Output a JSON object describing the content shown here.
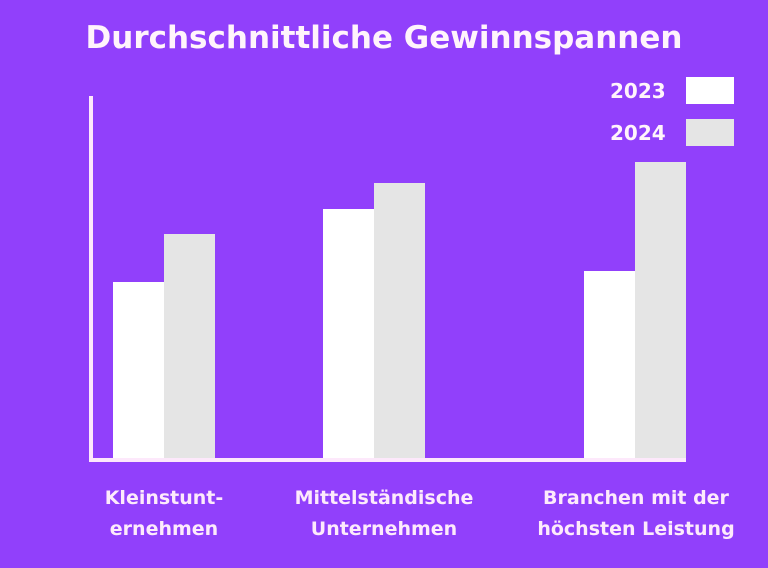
{
  "title": "Durchschnittliche Gewinnspannen",
  "legend": [
    {
      "label": "2023",
      "color": "#ffffff"
    },
    {
      "label": "2024",
      "color": "#e5e5e5"
    }
  ],
  "colors": {
    "background": "#9140fb",
    "axis": "#fde8fb",
    "text": "#fff4fb"
  },
  "categories": [
    {
      "line1": "Kleinstunt-",
      "line2": "ernehmen"
    },
    {
      "line1": "Mittelständische",
      "line2": "Unternehmen"
    },
    {
      "line1": "Branchen mit der",
      "line2": "höchsten Leistung"
    }
  ],
  "chart_data": {
    "type": "bar",
    "title": "Durchschnittliche Gewinnspannen",
    "categories": [
      "Kleinstunternehmen",
      "Mittelständische Unternehmen",
      "Branchen mit der höchsten Leistung"
    ],
    "series": [
      {
        "name": "2023",
        "color": "#ffffff",
        "values": [
          49,
          69,
          52
        ]
      },
      {
        "name": "2024",
        "color": "#e5e5e5",
        "values": [
          62,
          76,
          82
        ]
      }
    ],
    "xlabel": "",
    "ylabel": "",
    "ylim": [
      0,
      100
    ],
    "yticks": [],
    "grid": false,
    "legend_position": "top-right",
    "note": "No y-axis scale shown; values are relative estimates (axis height = 100)."
  }
}
